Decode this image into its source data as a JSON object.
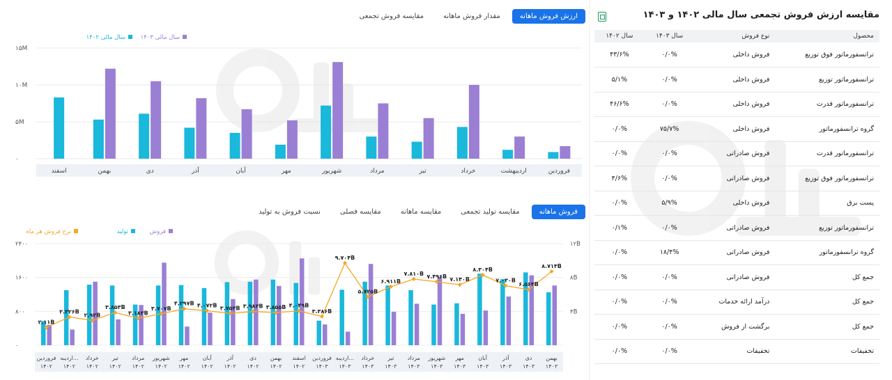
{
  "top_tabs": {
    "items": [
      "ارزش فروش ماهانه",
      "مقدار فروش ماهانه",
      "مقایسه فروش تجمعی"
    ],
    "active": 0
  },
  "bottom_tabs": {
    "items": [
      "فروش ماهانه",
      "مقایسه تولید تجمعی",
      "مقایسه ماهانه",
      "مقایسه فصلی",
      "نسبت فروش به تولید"
    ],
    "active": 0
  },
  "colors": {
    "accent": "#1a73e8",
    "cyan": "#1ab8db",
    "purple": "#9b7fd4",
    "orange": "#f5a623",
    "green": "#1a9a5a"
  },
  "chart_data": [
    {
      "type": "bar",
      "legend": [
        "سال مالی ۱۴۰۲",
        "سال مالی ۱۴۰۳"
      ],
      "y_ticks": [
        "۱۵M",
        "۱۰M",
        "۵M",
        "۰"
      ],
      "ylim": [
        0,
        15
      ],
      "grid": true,
      "legend_position": "top-left",
      "categories": [
        "فروردین",
        "اردیبهشت",
        "خرداد",
        "تیر",
        "مرداد",
        "شهریور",
        "مهر",
        "آبان",
        "آذر",
        "دی",
        "بهمن",
        "اسفند"
      ],
      "series": [
        {
          "name": "سال مالی ۱۴۰۲",
          "values": [
            0.9,
            1.2,
            4.3,
            2.3,
            3.0,
            7.2,
            1.9,
            3.5,
            4.2,
            6.1,
            5.3,
            8.3
          ]
        },
        {
          "name": "سال مالی ۱۴۰۳",
          "values": [
            1.7,
            3.0,
            10.0,
            5.5,
            7.5,
            13.1,
            5.2,
            6.7,
            8.2,
            10.5,
            12.2,
            null
          ]
        }
      ]
    },
    {
      "type": "bar",
      "legend": [
        "فروش",
        "تولید",
        "نرخ فروش هر ماه"
      ],
      "y_ticks_left": [
        "۲۴۰۰",
        "۱۶۰۰",
        "۸۰۰",
        "۰"
      ],
      "y_ticks_right": [
        "۱۲B",
        "۸B",
        "۴B",
        ""
      ],
      "ylim_left": [
        0,
        2400
      ],
      "ylim_right": [
        0,
        12
      ],
      "grid": true,
      "legend_position": "top-left",
      "categories": [
        [
          "فروردین",
          "۱۴۰۲"
        ],
        [
          "اردیبه...",
          "۱۴۰۲"
        ],
        [
          "خرداد",
          "۱۴۰۲"
        ],
        [
          "تیر",
          "۱۴۰۲"
        ],
        [
          "مرداد",
          "۱۴۰۲"
        ],
        [
          "شهریور",
          "۱۴۰۲"
        ],
        [
          "مهر",
          "۱۴۰۲"
        ],
        [
          "آبان",
          "۱۴۰۲"
        ],
        [
          "آذر",
          "۱۴۰۲"
        ],
        [
          "دی",
          "۱۴۰۲"
        ],
        [
          "بهمن",
          "۱۴۰۲"
        ],
        [
          "اسفند",
          "۱۴۰۲"
        ],
        [
          "فروردین",
          "۱۴۰۳"
        ],
        [
          "اردیبه...",
          "۱۴۰۳"
        ],
        [
          "خرداد",
          "۱۴۰۳"
        ],
        [
          "تیر",
          "۱۴۰۳"
        ],
        [
          "مرداد",
          "۱۴۰۳"
        ],
        [
          "شهریور",
          "۱۴۰۳"
        ],
        [
          "مهر",
          "۱۴۰۳"
        ],
        [
          "آبان",
          "۱۴۰۳"
        ],
        [
          "آذر",
          "۱۴۰۳"
        ],
        [
          "دی",
          "۱۴۰۳"
        ],
        [
          "بهمن",
          "۱۴۰۳"
        ]
      ],
      "series": [
        {
          "name": "تولید",
          "axis": "left",
          "values": [
            570,
            1300,
            1430,
            1410,
            960,
            1410,
            1420,
            1350,
            1490,
            1500,
            1550,
            1470,
            580,
            1310,
            1500,
            1410,
            1300,
            960,
            990,
            1690,
            1560,
            1720,
            1250
          ]
        },
        {
          "name": "فروش",
          "axis": "left",
          "values": [
            480,
            370,
            1500,
            610,
            950,
            1950,
            440,
            770,
            1090,
            1550,
            1400,
            2050,
            490,
            320,
            1920,
            790,
            980,
            1610,
            740,
            820,
            1150,
            1650,
            1410
          ]
        },
        {
          "name": "نرخ فروش هر ماه",
          "axis": "right",
          "values": [
            2.11,
            3.326,
            2.93,
            3.853,
            3.183,
            3.707,
            4.297,
            4.072,
            3.753,
            3.983,
            3.855,
            4.049,
            3.386,
            9.704,
            5.725,
            6.911,
            7.81,
            7.496,
            7.14,
            8.304,
            7.03,
            6.563,
            8.714
          ]
        }
      ],
      "point_labels": [
        "۲.۱۱B",
        "۳.۳۲۶B",
        "۲.۹۳B",
        "۳.۸۵۳B",
        "۳.۱۸۳B",
        "۳.۷۰۷B",
        "۴.۲۹۷B",
        "۴.۰۷۲B",
        "۳.۷۵۳B",
        "۳.۹۸۳B",
        "۳.۸۵۵B",
        "۴.۰۴۹B",
        "۳.۳۸۶B",
        "۹.۷۰۴B",
        "۵.۷۲۵B",
        "۶.۹۱۱B",
        "۷.۸۱۰B",
        "۷.۴۹۶B",
        "۷.۱۴۰B",
        "۸.۳۰۴B",
        "۷.۰۳۰B",
        "۶.۵۶۳B",
        "۸.۷۱۴B"
      ]
    }
  ],
  "table": {
    "title": "مقایسه ارزش فروش تجمعی سال مالی ۱۴۰۲ و ۱۴۰۳",
    "headers": [
      "محصول",
      "نوع فروش",
      "سال ۱۴۰۳",
      "سال ۱۴۰۲"
    ],
    "rows": [
      [
        "ترانسفورماتور فوق توزیع",
        "فروش داخلی",
        "۰/۰%",
        "۴۳/۶%"
      ],
      [
        "ترانسفورماتور توزیع",
        "فروش داخلی",
        "۰/۰%",
        "۵/۱%"
      ],
      [
        "ترانسفورماتور قدرت",
        "فروش داخلی",
        "۰/۰%",
        "۴۶/۶%"
      ],
      [
        "گروه ترانسفورماتور",
        "فروش داخلی",
        "۷۵/۷%",
        "۰/۰%"
      ],
      [
        "ترانسفورماتور قدرت",
        "فروش صادراتی",
        "۰/۰%",
        "۰/۰%"
      ],
      [
        "ترانسفورماتور فوق توزیع",
        "فروش صادراتی",
        "۰/۰%",
        "۴/۶%"
      ],
      [
        "پست برق",
        "فروش داخلی",
        "۵/۹%",
        "۰/۰%"
      ],
      [
        "ترانسفورماتور توزیع",
        "فروش صادراتی",
        "۰/۰%",
        "۰/۱%"
      ],
      [
        "گروه ترانسفورماتور",
        "فروش صادراتی",
        "۱۸/۴%",
        "۰/۰%"
      ],
      [
        "جمع کل",
        "فروش صادراتی",
        "۰/۰%",
        "۰/۰%"
      ],
      [
        "جمع کل",
        "درآمد ارائه خدمات",
        "۰/۰%",
        "۰/۰%"
      ],
      [
        "جمع کل",
        "برگشت از فروش",
        "۰/۰%",
        "۰/۰%"
      ],
      [
        "تخفیفات",
        "تخفیفات",
        "۰/۰%",
        "۰/۰%"
      ]
    ]
  }
}
